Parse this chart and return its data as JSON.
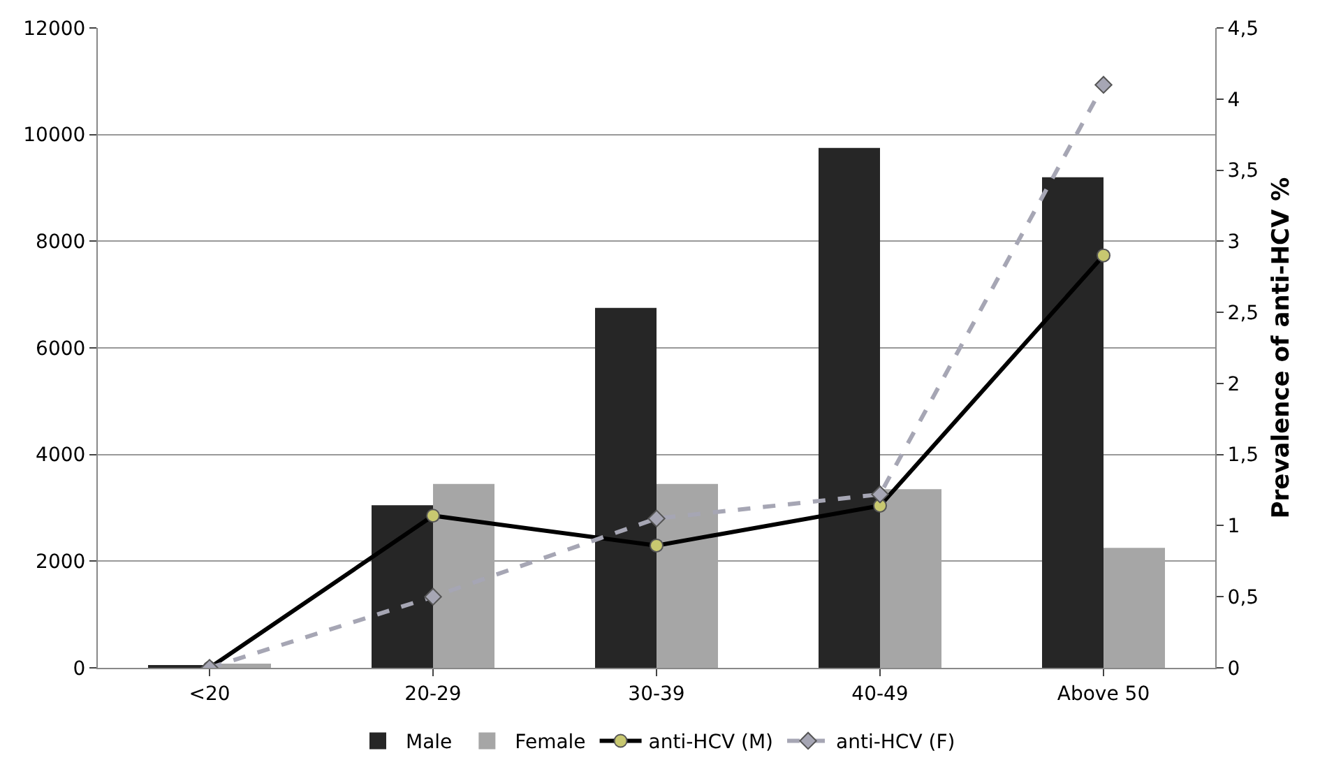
{
  "chart_data": {
    "type": "bar",
    "categories": [
      "<20",
      "20-29",
      "30-39",
      "40-49",
      "Above 50"
    ],
    "y2label": "Prevalence of anti-HCV %",
    "ylim": [
      0,
      12000
    ],
    "yticks": [
      0,
      2000,
      4000,
      6000,
      8000,
      10000,
      12000
    ],
    "y2lim": [
      0,
      4.5
    ],
    "y2ticks": [
      0,
      {
        "value": 0.5,
        "label": "0,5"
      },
      1,
      {
        "value": 1.5,
        "label": "1,5"
      },
      2,
      {
        "value": 2.5,
        "label": "2,5"
      },
      3,
      {
        "value": 3.5,
        "label": "3,5"
      },
      4,
      {
        "value": 4.5,
        "label": "4,5"
      }
    ],
    "grid": "y",
    "legend": "bottom",
    "series": [
      {
        "name": "Male",
        "color": "#262626",
        "values": [
          40,
          3050,
          6750,
          9750,
          9200
        ]
      },
      {
        "name": "Female",
        "color": "#a6a6a6",
        "values": [
          80,
          3450,
          3450,
          3350,
          2250
        ]
      },
      {
        "name": "anti-HCV (M)",
        "type": "line",
        "axis": "y2",
        "color": "#000000",
        "marker": "circle",
        "line_style": "solid",
        "values": [
          0,
          1.07,
          0.86,
          1.14,
          2.9
        ]
      },
      {
        "name": "anti-HCV (F)",
        "type": "line",
        "axis": "y2",
        "color": "#a6a6b4",
        "marker": "diamond",
        "line_style": "dashed",
        "values": [
          0,
          0.5,
          1.05,
          1.22,
          4.1
        ]
      }
    ]
  }
}
